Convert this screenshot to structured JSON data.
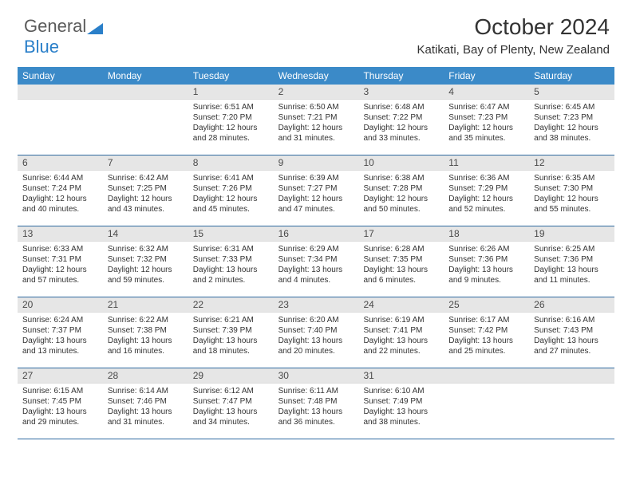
{
  "logo": {
    "text1": "General",
    "text2": "Blue",
    "triangle_color": "#2a7fc9"
  },
  "title": "October 2024",
  "subtitle": "Katikati, Bay of Plenty, New Zealand",
  "day_headers": [
    "Sunday",
    "Monday",
    "Tuesday",
    "Wednesday",
    "Thursday",
    "Friday",
    "Saturday"
  ],
  "header_bg": "#3b8ac8",
  "header_fg": "#ffffff",
  "gray_bg": "#e6e6e6",
  "divider_color": "#2f6aa0",
  "weeks": [
    [
      null,
      null,
      {
        "d": "1",
        "sr": "6:51 AM",
        "ss": "7:20 PM",
        "dl1": "Daylight: 12 hours",
        "dl2": "and 28 minutes."
      },
      {
        "d": "2",
        "sr": "6:50 AM",
        "ss": "7:21 PM",
        "dl1": "Daylight: 12 hours",
        "dl2": "and 31 minutes."
      },
      {
        "d": "3",
        "sr": "6:48 AM",
        "ss": "7:22 PM",
        "dl1": "Daylight: 12 hours",
        "dl2": "and 33 minutes."
      },
      {
        "d": "4",
        "sr": "6:47 AM",
        "ss": "7:23 PM",
        "dl1": "Daylight: 12 hours",
        "dl2": "and 35 minutes."
      },
      {
        "d": "5",
        "sr": "6:45 AM",
        "ss": "7:23 PM",
        "dl1": "Daylight: 12 hours",
        "dl2": "and 38 minutes."
      }
    ],
    [
      {
        "d": "6",
        "sr": "6:44 AM",
        "ss": "7:24 PM",
        "dl1": "Daylight: 12 hours",
        "dl2": "and 40 minutes."
      },
      {
        "d": "7",
        "sr": "6:42 AM",
        "ss": "7:25 PM",
        "dl1": "Daylight: 12 hours",
        "dl2": "and 43 minutes."
      },
      {
        "d": "8",
        "sr": "6:41 AM",
        "ss": "7:26 PM",
        "dl1": "Daylight: 12 hours",
        "dl2": "and 45 minutes."
      },
      {
        "d": "9",
        "sr": "6:39 AM",
        "ss": "7:27 PM",
        "dl1": "Daylight: 12 hours",
        "dl2": "and 47 minutes."
      },
      {
        "d": "10",
        "sr": "6:38 AM",
        "ss": "7:28 PM",
        "dl1": "Daylight: 12 hours",
        "dl2": "and 50 minutes."
      },
      {
        "d": "11",
        "sr": "6:36 AM",
        "ss": "7:29 PM",
        "dl1": "Daylight: 12 hours",
        "dl2": "and 52 minutes."
      },
      {
        "d": "12",
        "sr": "6:35 AM",
        "ss": "7:30 PM",
        "dl1": "Daylight: 12 hours",
        "dl2": "and 55 minutes."
      }
    ],
    [
      {
        "d": "13",
        "sr": "6:33 AM",
        "ss": "7:31 PM",
        "dl1": "Daylight: 12 hours",
        "dl2": "and 57 minutes."
      },
      {
        "d": "14",
        "sr": "6:32 AM",
        "ss": "7:32 PM",
        "dl1": "Daylight: 12 hours",
        "dl2": "and 59 minutes."
      },
      {
        "d": "15",
        "sr": "6:31 AM",
        "ss": "7:33 PM",
        "dl1": "Daylight: 13 hours",
        "dl2": "and 2 minutes."
      },
      {
        "d": "16",
        "sr": "6:29 AM",
        "ss": "7:34 PM",
        "dl1": "Daylight: 13 hours",
        "dl2": "and 4 minutes."
      },
      {
        "d": "17",
        "sr": "6:28 AM",
        "ss": "7:35 PM",
        "dl1": "Daylight: 13 hours",
        "dl2": "and 6 minutes."
      },
      {
        "d": "18",
        "sr": "6:26 AM",
        "ss": "7:36 PM",
        "dl1": "Daylight: 13 hours",
        "dl2": "and 9 minutes."
      },
      {
        "d": "19",
        "sr": "6:25 AM",
        "ss": "7:36 PM",
        "dl1": "Daylight: 13 hours",
        "dl2": "and 11 minutes."
      }
    ],
    [
      {
        "d": "20",
        "sr": "6:24 AM",
        "ss": "7:37 PM",
        "dl1": "Daylight: 13 hours",
        "dl2": "and 13 minutes."
      },
      {
        "d": "21",
        "sr": "6:22 AM",
        "ss": "7:38 PM",
        "dl1": "Daylight: 13 hours",
        "dl2": "and 16 minutes."
      },
      {
        "d": "22",
        "sr": "6:21 AM",
        "ss": "7:39 PM",
        "dl1": "Daylight: 13 hours",
        "dl2": "and 18 minutes."
      },
      {
        "d": "23",
        "sr": "6:20 AM",
        "ss": "7:40 PM",
        "dl1": "Daylight: 13 hours",
        "dl2": "and 20 minutes."
      },
      {
        "d": "24",
        "sr": "6:19 AM",
        "ss": "7:41 PM",
        "dl1": "Daylight: 13 hours",
        "dl2": "and 22 minutes."
      },
      {
        "d": "25",
        "sr": "6:17 AM",
        "ss": "7:42 PM",
        "dl1": "Daylight: 13 hours",
        "dl2": "and 25 minutes."
      },
      {
        "d": "26",
        "sr": "6:16 AM",
        "ss": "7:43 PM",
        "dl1": "Daylight: 13 hours",
        "dl2": "and 27 minutes."
      }
    ],
    [
      {
        "d": "27",
        "sr": "6:15 AM",
        "ss": "7:45 PM",
        "dl1": "Daylight: 13 hours",
        "dl2": "and 29 minutes."
      },
      {
        "d": "28",
        "sr": "6:14 AM",
        "ss": "7:46 PM",
        "dl1": "Daylight: 13 hours",
        "dl2": "and 31 minutes."
      },
      {
        "d": "29",
        "sr": "6:12 AM",
        "ss": "7:47 PM",
        "dl1": "Daylight: 13 hours",
        "dl2": "and 34 minutes."
      },
      {
        "d": "30",
        "sr": "6:11 AM",
        "ss": "7:48 PM",
        "dl1": "Daylight: 13 hours",
        "dl2": "and 36 minutes."
      },
      {
        "d": "31",
        "sr": "6:10 AM",
        "ss": "7:49 PM",
        "dl1": "Daylight: 13 hours",
        "dl2": "and 38 minutes."
      },
      null,
      null
    ]
  ],
  "labels": {
    "sunrise": "Sunrise:",
    "sunset": "Sunset:"
  }
}
